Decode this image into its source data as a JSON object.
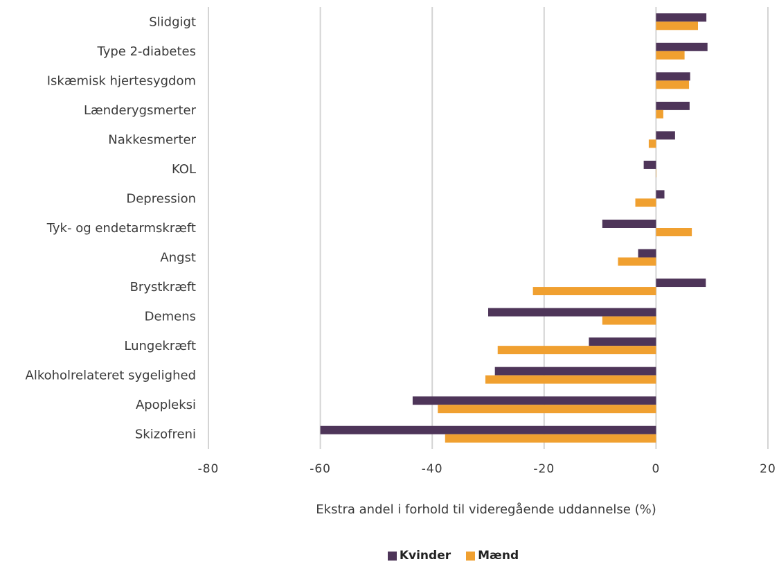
{
  "chart_data": {
    "type": "bar",
    "orientation": "horizontal",
    "categories": [
      "Slidgigt",
      "Type 2-diabetes",
      "Iskæmisk hjertesygdom",
      "Lænderygsmerter",
      "Nakkesmerter",
      "KOL",
      "Depression",
      "Tyk- og endetarmskræft",
      "Angst",
      "Brystkræft",
      "Demens",
      "Lungekræft",
      "Alkoholrelateret sygelighed",
      "Apopleksi",
      "Skizofreni"
    ],
    "series": [
      {
        "name": "Kvinder",
        "color": "#4e3559",
        "values": [
          9,
          9.2,
          6.1,
          6,
          3.4,
          -2.2,
          1.5,
          -9.6,
          -3.2,
          8.9,
          -30,
          -12,
          -28.8,
          -43.5,
          -60
        ]
      },
      {
        "name": "Mænd",
        "color": "#f0a030",
        "values": [
          7.5,
          5.1,
          5.9,
          1.3,
          -1.3,
          0,
          -3.7,
          6.4,
          -6.8,
          -22,
          -9.6,
          -28.3,
          -30.5,
          -39,
          -37.7
        ]
      }
    ],
    "xlim": [
      -80,
      20
    ],
    "xticks": [
      "-80",
      "-60",
      "-40",
      "-20",
      "0",
      "20"
    ],
    "xlabel": "Ekstra andel i forhold til videregående uddannelse (%)",
    "grid": true,
    "legend_position": "bottom"
  }
}
